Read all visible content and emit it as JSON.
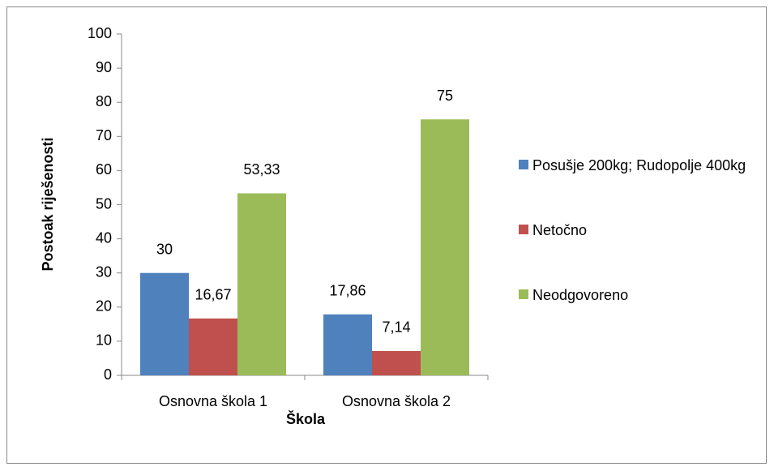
{
  "chart_data": {
    "type": "bar",
    "categories": [
      "Osnovna škola 1",
      "Osnovna škola 2"
    ],
    "series": [
      {
        "name": "Posušje 200kg; Rudopolje 400kg",
        "color": "#4f81bd",
        "values": [
          30,
          17.86
        ],
        "value_labels": [
          "30",
          "17,86"
        ]
      },
      {
        "name": "Netočno",
        "color": "#c0504d",
        "values": [
          16.67,
          7.14
        ],
        "value_labels": [
          "16,67",
          "7,14"
        ]
      },
      {
        "name": "Neodgovoreno",
        "color": "#9bbb59",
        "values": [
          53.33,
          75
        ],
        "value_labels": [
          "53,33",
          "75"
        ]
      }
    ],
    "ylim": [
      0,
      100
    ],
    "yticks": [
      0,
      10,
      20,
      30,
      40,
      50,
      60,
      70,
      80,
      90,
      100
    ],
    "xlabel": "Škola",
    "ylabel": "Postoak riješenosti",
    "legend": "right",
    "grid": false
  }
}
